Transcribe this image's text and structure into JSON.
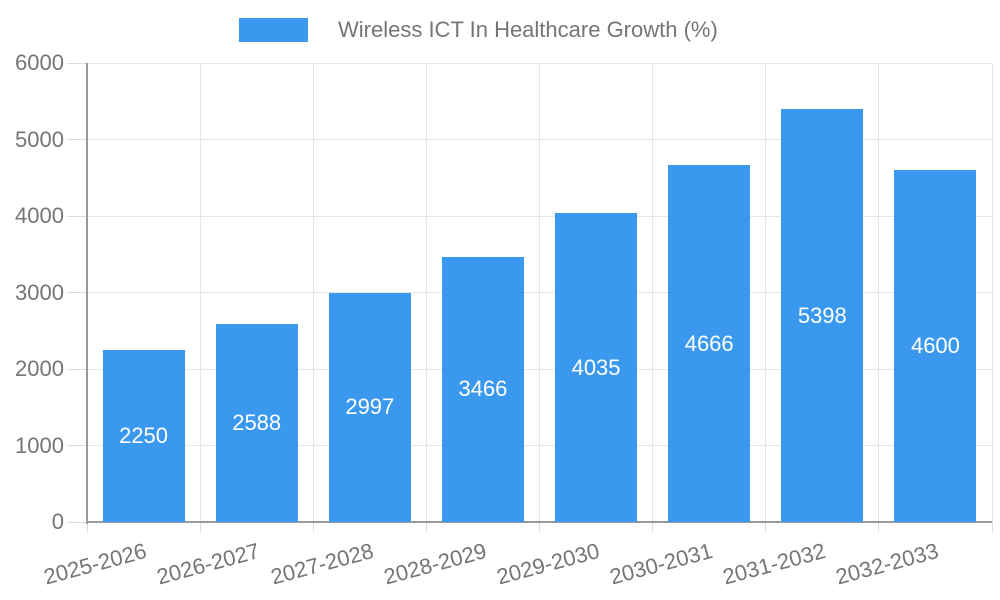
{
  "chart_data": {
    "type": "bar",
    "legend": {
      "label": "Wireless ICT In Healthcare Growth (%)",
      "position": "top"
    },
    "categories": [
      "2025-2026",
      "2026-2027",
      "2027-2028",
      "2028-2029",
      "2029-2030",
      "2030-2031",
      "2031-2032",
      "2032-2033"
    ],
    "values": [
      2250,
      2588,
      2997,
      3466,
      4035,
      4666,
      5398,
      4600
    ],
    "yticks": [
      0,
      1000,
      2000,
      3000,
      4000,
      5000,
      6000
    ],
    "ylim": [
      0,
      6000
    ],
    "grid": true,
    "bar_value_labels_shown": true,
    "colors": {
      "bar": "#3A99EE",
      "bar_label": "#FFFFFF",
      "axis_text": "#757575",
      "grid": "#E5E5E5",
      "tick": "#DCDCDC",
      "axis_line": "#9A9A9A",
      "background": "#FFFFFF"
    }
  }
}
